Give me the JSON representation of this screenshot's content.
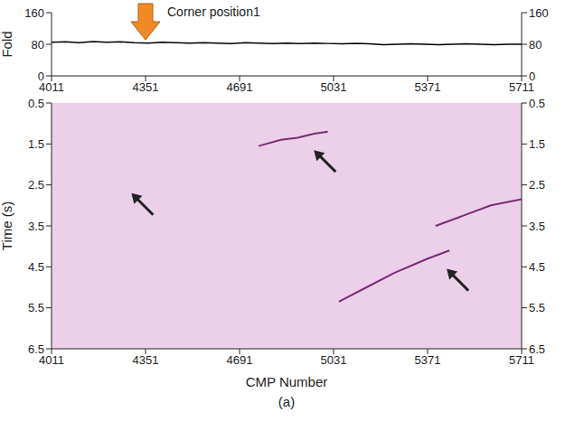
{
  "chart_data": [
    {
      "type": "line",
      "ylabel": "Fold",
      "xlim": [
        4011,
        5711
      ],
      "xticks": [
        4011,
        4351,
        4691,
        5031,
        5371,
        5711
      ],
      "ylim": [
        0,
        160
      ],
      "yticks": [
        0,
        80,
        160
      ],
      "grid": false,
      "series": [
        {
          "color": "#000000",
          "x": [
            4011,
            4061,
            4111,
            4161,
            4211,
            4261,
            4311,
            4361,
            4411,
            4461,
            4511,
            4561,
            4611,
            4661,
            4711,
            4761,
            4811,
            4861,
            4911,
            4961,
            5011,
            5061,
            5111,
            5161,
            5211,
            5261,
            5311,
            5361,
            5411,
            5461,
            5511,
            5561,
            5611,
            5661,
            5711
          ],
          "values": [
            85,
            86,
            84,
            87,
            85,
            86,
            84,
            83,
            85,
            84,
            83,
            84,
            83,
            82,
            84,
            83,
            82,
            83,
            82,
            83,
            82,
            81,
            82,
            81,
            79,
            80,
            81,
            80,
            79,
            80,
            81,
            80,
            79,
            80,
            80
          ]
        }
      ],
      "annotations": [
        {
          "text": "Corner position1",
          "x": 4351,
          "color": "#f08a24"
        }
      ]
    },
    {
      "type": "line",
      "xlabel": "CMP Number",
      "ylabel": "Time (s)",
      "caption": "(a)",
      "xlim": [
        4011,
        5711
      ],
      "xticks": [
        4011,
        4351,
        4691,
        5031,
        5371,
        5711
      ],
      "ylim": [
        6.5,
        0.5
      ],
      "yticks": [
        0.5,
        1.5,
        2.5,
        3.5,
        4.5,
        5.5,
        6.5
      ],
      "grid": false,
      "color": "#ecd0e9",
      "series": [
        {
          "color": "#7a2b78",
          "x": [
            4760,
            4840,
            4900,
            4960,
            5010
          ],
          "values": [
            1.55,
            1.4,
            1.35,
            1.25,
            1.2
          ]
        },
        {
          "color": "#7a2b78",
          "x": [
            5050,
            5150,
            5250,
            5371,
            5450
          ],
          "values": [
            5.35,
            5.0,
            4.65,
            4.3,
            4.1
          ]
        },
        {
          "color": "#7a2b78",
          "x": [
            5400,
            5500,
            5600,
            5711
          ],
          "values": [
            3.5,
            3.25,
            3.0,
            2.85
          ]
        }
      ],
      "arrows": [
        {
          "x": 4300,
          "y": 2.7
        },
        {
          "x": 4960,
          "y": 1.65
        },
        {
          "x": 5440,
          "y": 4.55
        }
      ]
    }
  ]
}
